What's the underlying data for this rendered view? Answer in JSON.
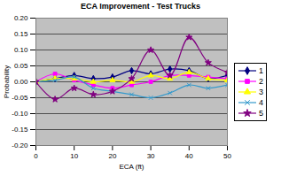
{
  "chart_data": {
    "type": "line",
    "title": "ECA Improvement - Test Trucks",
    "x_label": "ECA (ft)",
    "y_label": "Probability",
    "x": [
      0,
      5,
      10,
      15,
      20,
      25,
      30,
      35,
      40,
      45,
      50
    ],
    "xlim": [
      0,
      50
    ],
    "xticks": [
      0,
      10,
      20,
      30,
      40,
      50
    ],
    "ylim": [
      -0.2,
      0.2
    ],
    "yticks": [
      {
        "value": -0.2,
        "label": "-0.20"
      },
      {
        "value": -0.15,
        "label": "-0.15"
      },
      {
        "value": -0.1,
        "label": "-0.10"
      },
      {
        "value": -0.05,
        "label": "-0.05"
      },
      {
        "value": 0,
        "label": "0.00"
      },
      {
        "value": 0.05,
        "label": "0.05"
      },
      {
        "value": 0.1,
        "label": "0.10"
      },
      {
        "value": 0.15,
        "label": "0.15"
      },
      {
        "value": 0.2,
        "label": "0.20"
      }
    ],
    "grid": true,
    "legend": "right",
    "series": [
      {
        "name": "1",
        "color": "#000080",
        "marker": "diamond",
        "values": [
          0,
          0.01,
          0.02,
          0.01,
          0.015,
          0.035,
          0.025,
          0.04,
          0.035,
          0.01,
          0.02
        ]
      },
      {
        "name": "2",
        "color": "#ff00ff",
        "marker": "square",
        "values": [
          0,
          0.025,
          0.005,
          -0.01,
          -0.02,
          -0.01,
          0,
          0.02,
          0.02,
          0.015,
          0.01
        ]
      },
      {
        "name": "3",
        "color": "#ffff00",
        "marker": "triangle",
        "values": [
          0,
          0.01,
          0.01,
          0,
          0.005,
          0,
          0.02,
          0.01,
          0.03,
          0.01,
          0.005
        ]
      },
      {
        "name": "4",
        "color": "#3399cc",
        "marker": "times",
        "values": [
          0,
          0.005,
          0.015,
          -0.02,
          -0.03,
          -0.04,
          -0.05,
          -0.035,
          -0.01,
          -0.02,
          -0.01
        ]
      },
      {
        "name": "5",
        "color": "#800080",
        "marker": "star",
        "values": [
          0,
          -0.055,
          -0.02,
          -0.04,
          -0.03,
          0.01,
          0.1,
          0.02,
          0.14,
          0.06,
          0.03
        ]
      }
    ]
  }
}
